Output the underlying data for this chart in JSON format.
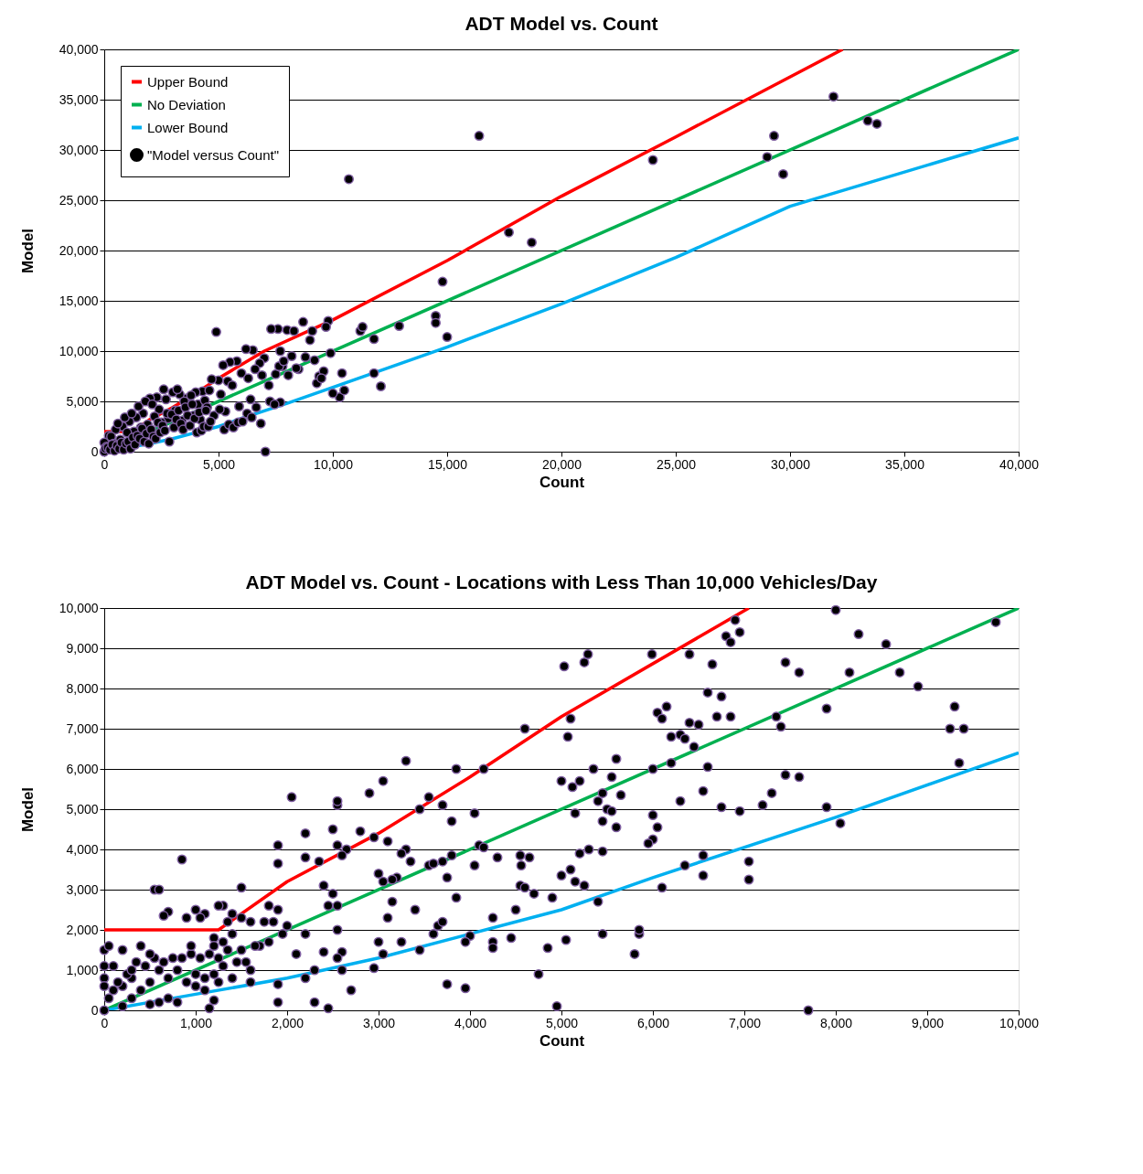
{
  "chart_data": [
    {
      "type": "scatter",
      "title": "ADT Model vs. Count",
      "xlabel": "Count",
      "ylabel": "Model",
      "legend": "top left",
      "grid": "y",
      "xlim": [
        0,
        40000
      ],
      "ylim": [
        0,
        40000
      ],
      "xticks": [
        0,
        {
          "value": 5000,
          "label": "5,000"
        },
        {
          "value": 10000,
          "label": "10,000"
        },
        {
          "value": 15000,
          "label": "15,000"
        },
        {
          "value": 20000,
          "label": "20,000"
        },
        {
          "value": 25000,
          "label": "25,000"
        },
        {
          "value": 30000,
          "label": "30,000"
        },
        {
          "value": 35000,
          "label": "35,000"
        },
        {
          "value": 40000,
          "label": "40,000"
        }
      ],
      "yticks": [
        0,
        {
          "value": 5000,
          "label": "5,000"
        },
        {
          "value": 10000,
          "label": "10,000"
        },
        {
          "value": 15000,
          "label": "15,000"
        },
        {
          "value": 20000,
          "label": "20,000"
        },
        {
          "value": 25000,
          "label": "25,000"
        },
        {
          "value": 30000,
          "label": "30,000"
        },
        {
          "value": 35000,
          "label": "35,000"
        },
        {
          "value": 40000,
          "label": "40,000"
        }
      ],
      "series": [
        {
          "name": "Upper Bound",
          "type": "line",
          "color": "#ff0000",
          "x": [
            0,
            1250,
            2000,
            3000,
            4000,
            5000,
            7000,
            10000,
            15000,
            20000,
            25000,
            32300
          ],
          "values": [
            2000,
            2000,
            3200,
            4400,
            5800,
            7300,
            10000,
            13100,
            19000,
            25400,
            31300,
            40000
          ]
        },
        {
          "name": "No Deviation",
          "type": "line",
          "color": "#00b050",
          "x": [
            0,
            40000
          ],
          "values": [
            0,
            40000
          ]
        },
        {
          "name": "Lower Bound",
          "type": "line",
          "color": "#00b0f0",
          "x": [
            0,
            1000,
            2000,
            3000,
            4000,
            5000,
            6000,
            8000,
            10000,
            15000,
            20000,
            25000,
            30000,
            40000
          ],
          "values": [
            0,
            400,
            800,
            1300,
            1900,
            2500,
            3300,
            4800,
            6400,
            10400,
            14700,
            19300,
            24400,
            31200
          ]
        },
        {
          "name": "\"Model versus Count\"",
          "marker": "circle",
          "color": "#000000",
          "x": [
            10700,
            16400,
            24000,
            29000,
            29300,
            29700,
            31900,
            33400,
            33800,
            17700,
            18700,
            14800,
            14500,
            14500,
            15000,
            12900,
            11800,
            11200,
            11300,
            10400,
            10300,
            10500,
            11800,
            12100,
            9800,
            9700,
            8700,
            8000,
            7600,
            7300,
            8300,
            9100,
            9900,
            4900,
            7700,
            8200,
            8500,
            9400,
            9300,
            9600,
            9500,
            9200,
            7000,
            6500,
            6800,
            6200,
            5800,
            5500,
            5200,
            5000,
            4700,
            4300,
            4000,
            3600,
            3300,
            3000,
            2600,
            2300,
            2000,
            1700,
            1400,
            1100,
            800,
            500,
            200,
            0,
            300,
            600,
            900,
            1200,
            1500,
            1800,
            2100,
            2400,
            2700,
            3200,
            3500,
            3800,
            4100,
            4400,
            4600,
            5100,
            5400,
            5600,
            6000,
            6300,
            6600,
            6900,
            7200,
            7500,
            7800,
            7700,
            6400,
            5900,
            5300,
            4800,
            4500,
            4200,
            3900,
            3400,
            3100,
            2800,
            2500,
            2200,
            1900,
            1600,
            1300,
            1000,
            700,
            400,
            100,
            0,
            50,
            150,
            250,
            350,
            450,
            550,
            650,
            750,
            850,
            950,
            1050,
            1150,
            1250,
            1350,
            1450,
            1550,
            1650,
            1750,
            1850,
            1950,
            2050,
            2150,
            2250,
            2350,
            2450,
            2550,
            2650,
            2750,
            2850,
            2950,
            3050,
            3150,
            3250,
            3350,
            3450,
            3550,
            3650,
            3750,
            3850,
            3950,
            4050,
            4150,
            4250,
            4350,
            4450,
            4550,
            4650,
            5050,
            5250,
            5450,
            5650,
            5850,
            6050,
            6250,
            6450,
            6650,
            6850,
            7050,
            7250,
            7450,
            7650,
            7850,
            8050,
            8400,
            8800,
            9000,
            10000
          ],
          "values": [
            27100,
            31400,
            29000,
            29300,
            31400,
            27600,
            35300,
            32900,
            32600,
            21800,
            20800,
            16900,
            13500,
            12800,
            11400,
            12500,
            11200,
            12000,
            12400,
            7800,
            5400,
            6100,
            7800,
            6500,
            13000,
            12400,
            12900,
            12100,
            12200,
            12200,
            12000,
            12000,
            9800,
            11900,
            10000,
            9500,
            8200,
            7500,
            6800,
            8000,
            7300,
            9100,
            9300,
            10100,
            8800,
            10200,
            9000,
            8900,
            8600,
            7100,
            7200,
            6000,
            5900,
            5300,
            5700,
            5900,
            6200,
            5400,
            5300,
            3800,
            3400,
            3000,
            2500,
            2200,
            1600,
            900,
            1500,
            2800,
            3400,
            3800,
            4500,
            5000,
            4700,
            4200,
            5200,
            6200,
            5000,
            5600,
            4700,
            5100,
            6100,
            5700,
            7000,
            6600,
            7800,
            7300,
            8200,
            7600,
            6600,
            7700,
            8500,
            4900,
            5200,
            4500,
            4000,
            3600,
            4400,
            3200,
            3600,
            3100,
            4100,
            3300,
            2900,
            3500,
            2700,
            2400,
            2000,
            1900,
            1200,
            800,
            500,
            0,
            300,
            400,
            200,
            700,
            100,
            600,
            300,
            900,
            200,
            800,
            1000,
            300,
            1400,
            700,
            1600,
            1300,
            2300,
            1000,
            1800,
            800,
            2200,
            1500,
            1300,
            2900,
            1900,
            2600,
            2100,
            3800,
            1000,
            3700,
            2400,
            3200,
            4100,
            2800,
            2200,
            4400,
            3600,
            2600,
            4700,
            3300,
            1900,
            3900,
            2100,
            2500,
            4100,
            2500,
            3000,
            4200,
            2200,
            2700,
            2400,
            2900,
            3000,
            3800,
            3400,
            4400,
            2800,
            0,
            5000,
            4700,
            8500,
            9000,
            7600,
            8300,
            9400,
            11100,
            5800
          ]
        }
      ]
    },
    {
      "type": "scatter",
      "title": "ADT Model vs. Count - Locations with Less Than 10,000 Vehicles/Day",
      "xlabel": "Count",
      "ylabel": "Model",
      "legend": "top left",
      "grid": "y",
      "xlim": [
        0,
        10000
      ],
      "ylim": [
        0,
        10000
      ],
      "xticks": [
        0,
        {
          "value": 1000,
          "label": "1,000"
        },
        {
          "value": 2000,
          "label": "2,000"
        },
        {
          "value": 3000,
          "label": "3,000"
        },
        {
          "value": 4000,
          "label": "4,000"
        },
        {
          "value": 5000,
          "label": "5,000"
        },
        {
          "value": 6000,
          "label": "6,000"
        },
        {
          "value": 7000,
          "label": "7,000"
        },
        {
          "value": 8000,
          "label": "8,000"
        },
        {
          "value": 9000,
          "label": "9,000"
        },
        {
          "value": 10000,
          "label": "10,000"
        }
      ],
      "yticks": [
        0,
        {
          "value": 1000,
          "label": "1,000"
        },
        {
          "value": 2000,
          "label": "2,000"
        },
        {
          "value": 3000,
          "label": "3,000"
        },
        {
          "value": 4000,
          "label": "4,000"
        },
        {
          "value": 5000,
          "label": "5,000"
        },
        {
          "value": 6000,
          "label": "6,000"
        },
        {
          "value": 7000,
          "label": "7,000"
        },
        {
          "value": 8000,
          "label": "8,000"
        },
        {
          "value": 9000,
          "label": "9,000"
        },
        {
          "value": 10000,
          "label": "10,000"
        }
      ],
      "series": [
        {
          "name": "Upper Bound",
          "type": "line",
          "color": "#ff0000",
          "x": [
            0,
            1250,
            2000,
            3000,
            4000,
            5000,
            7050
          ],
          "values": [
            2000,
            2000,
            3200,
            4400,
            5800,
            7300,
            10000
          ]
        },
        {
          "name": "No Deviation",
          "type": "line",
          "color": "#00b050",
          "x": [
            0,
            10000
          ],
          "values": [
            0,
            10000
          ]
        },
        {
          "name": "Lower Bound",
          "type": "line",
          "color": "#00b0f0",
          "x": [
            0,
            1000,
            2000,
            3000,
            4000,
            5000,
            6000,
            8000,
            10000
          ],
          "values": [
            0,
            400,
            800,
            1300,
            1900,
            2500,
            3300,
            4800,
            6400
          ]
        },
        {
          "name": "\"Model versus Count\"",
          "marker": "circle",
          "color": "#000000",
          "x": [
            5030,
            5100,
            5070,
            5250,
            5290,
            5120,
            4600,
            5000,
            5200,
            5150,
            5350,
            5400,
            5450,
            5500,
            5550,
            5600,
            5650,
            5550,
            5600,
            5450,
            5300,
            5450,
            5200,
            5100,
            5150,
            5000,
            5250,
            5400,
            5450,
            5050,
            4950,
            4750,
            4850,
            4900,
            4650,
            4550,
            4560,
            4550,
            4600,
            4700,
            4500,
            4450,
            4250,
            4250,
            4250,
            4300,
            4050,
            4100,
            4150,
            4050,
            4000,
            3950,
            3950,
            3750,
            3850,
            3800,
            3700,
            3750,
            3800,
            3850,
            4150,
            3700,
            3550,
            3450,
            3300,
            3350,
            3300,
            3250,
            3200,
            3150,
            3100,
            3000,
            3050,
            2950,
            3250,
            3400,
            3450,
            3600,
            3650,
            3700,
            3550,
            3600,
            3000,
            3050,
            3150,
            3100,
            2950,
            2900,
            3050,
            2800,
            2650,
            2600,
            2500,
            2550,
            2550,
            2550,
            2050,
            2200,
            1900,
            1900,
            2200,
            2350,
            2400,
            2500,
            2450,
            2550,
            2550,
            2600,
            2550,
            2400,
            2300,
            2200,
            2300,
            2450,
            2700,
            2600,
            2100,
            2000,
            1950,
            1850,
            1800,
            1900,
            1750,
            1500,
            1600,
            1500,
            1400,
            1350,
            1300,
            1250,
            1100,
            1000,
            1050,
            900,
            850,
            550,
            600,
            700,
            650,
            1200,
            1300,
            1350,
            1200,
            1400,
            1500,
            1600,
            1550,
            1400,
            1250,
            1100,
            1200,
            1150,
            1900,
            1900,
            2200,
            1700,
            1800,
            1150,
            1050,
            950,
            850,
            750,
            650,
            600,
            550,
            450,
            400,
            500,
            350,
            300,
            250,
            200,
            150,
            100,
            50,
            0,
            0,
            50,
            0,
            0,
            0,
            100,
            200,
            300,
            400,
            500,
            700,
            800,
            900,
            1000,
            1100,
            1200,
            1300,
            1000,
            800,
            700,
            600,
            500,
            300,
            200,
            950,
            1250,
            1450,
            1600,
            1650,
            5990,
            6050,
            6150,
            6100,
            6200,
            6300,
            6350,
            6400,
            6500,
            6450,
            6200,
            6300,
            6550,
            6600,
            6600,
            6750,
            6700,
            6850,
            6800,
            6850,
            6900,
            6950,
            6650,
            6400,
            6000,
            6050,
            6000,
            6000,
            5950,
            6100,
            6350,
            6550,
            6550,
            6750,
            6950,
            7200,
            7300,
            7350,
            7400,
            7450,
            7600,
            7450,
            7600,
            7050,
            7050,
            7700,
            7900,
            7900,
            8050,
            8000,
            8150,
            8250,
            8550,
            8700,
            8900,
            9250,
            9300,
            9400,
            9350,
            9750,
            5800,
            5850,
            5850
          ],
          "values": [
            8550,
            7250,
            6800,
            8650,
            8850,
            5550,
            7000,
            5700,
            5700,
            4900,
            6000,
            5200,
            5400,
            5000,
            5800,
            6250,
            5350,
            4950,
            4550,
            4700,
            4000,
            3950,
            3900,
            3500,
            3200,
            3350,
            3100,
            2700,
            1900,
            1750,
            100,
            900,
            1550,
            2800,
            3800,
            3850,
            3600,
            3100,
            3050,
            2900,
            2500,
            1800,
            1700,
            1550,
            2300,
            3800,
            4900,
            4100,
            4050,
            3600,
            1850,
            1700,
            550,
            650,
            2800,
            3850,
            3700,
            3300,
            4700,
            6000,
            6000,
            5100,
            5300,
            5000,
            6200,
            3700,
            4000,
            3900,
            3300,
            2700,
            2300,
            1700,
            1400,
            1050,
            1700,
            2500,
            1500,
            1900,
            2100,
            2200,
            3600,
            3650,
            3400,
            3200,
            3250,
            4200,
            4300,
            5400,
            5700,
            4450,
            4000,
            3850,
            4500,
            4100,
            5100,
            5200,
            5300,
            4400,
            4100,
            3650,
            3800,
            3700,
            3100,
            2900,
            2600,
            2600,
            2000,
            1450,
            1300,
            1450,
            1000,
            800,
            200,
            50,
            500,
            1000,
            1400,
            2100,
            1900,
            2200,
            2600,
            2500,
            2200,
            3050,
            2200,
            2300,
            2400,
            2200,
            2600,
            2600,
            2400,
            2500,
            2300,
            2300,
            3750,
            3000,
            3000,
            2450,
            2350,
            1800,
            1700,
            1500,
            1600,
            1900,
            1500,
            1000,
            1200,
            800,
            700,
            500,
            250,
            50,
            200,
            650,
            1900,
            1600,
            1700,
            1400,
            1300,
            1400,
            1300,
            1300,
            1200,
            1000,
            1300,
            1100,
            1600,
            1400,
            1200,
            800,
            900,
            600,
            700,
            500,
            300,
            0,
            1500,
            1600,
            1100,
            800,
            600,
            1100,
            1500,
            1000,
            500,
            700,
            800,
            1000,
            700,
            900,
            800,
            900,
            1100,
            600,
            200,
            300,
            200,
            150,
            300,
            100,
            1600,
            1300,
            1200,
            700,
            1600,
            8850,
            7400,
            7550,
            7250,
            6800,
            6850,
            6750,
            7150,
            7100,
            6550,
            6150,
            5200,
            5450,
            6050,
            7900,
            7800,
            7300,
            7300,
            9300,
            9150,
            9700,
            9400,
            8600,
            8850,
            6000,
            4550,
            4850,
            4250,
            4150,
            3050,
            3600,
            3850,
            3350,
            5050,
            4950,
            5100,
            5400,
            7300,
            7050,
            8650,
            8400,
            5850,
            5800,
            3700,
            3250,
            0,
            7500,
            5050,
            4650,
            9950,
            8400,
            9350,
            9100,
            8400,
            8050,
            7000,
            7550,
            7000,
            6150,
            9650,
            1400,
            1900,
            2000
          ]
        }
      ]
    }
  ]
}
